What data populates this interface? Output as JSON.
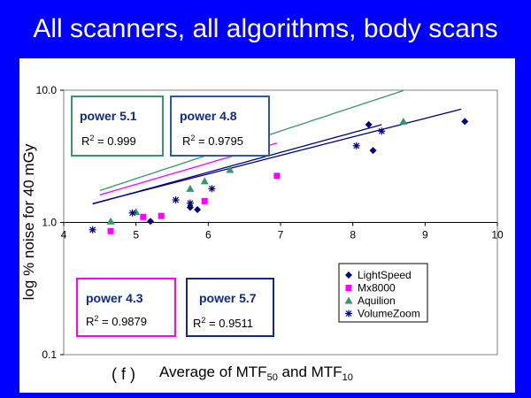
{
  "title": "All scanners, all algorithms, body scans",
  "chart_data": {
    "type": "scatter",
    "panel_tag": "( f )",
    "xlabel_main": "Average of MTF",
    "xlabel_sub1": "50",
    "xlabel_mid": " and MTF",
    "xlabel_sub2": "10",
    "ylabel": "log % noise for 40 mGy",
    "xlim": [
      4,
      10
    ],
    "ylim": [
      0.1,
      10
    ],
    "y_scale": "log",
    "x_ticks": [
      "4",
      "5",
      "6",
      "7",
      "8",
      "9",
      "10"
    ],
    "y_ticks": [
      "10.0",
      "1.0",
      "0.1"
    ],
    "legend_position": "bottom-right",
    "series": [
      {
        "name": "LightSpeed",
        "marker": "diamond",
        "color": "#000080",
        "points": [
          [
            5.2,
            1.02
          ],
          [
            5.75,
            1.3
          ],
          [
            5.85,
            1.25
          ],
          [
            8.22,
            5.5
          ],
          [
            8.28,
            3.5
          ],
          [
            9.55,
            5.8
          ]
        ],
        "fit": {
          "a": 3.38,
          "b": 0.14,
          "x0": 4.4,
          "x1": 9.5
        }
      },
      {
        "name": "Mx8000",
        "marker": "square",
        "color": "#ff00ff",
        "points": [
          [
            4.65,
            0.86
          ],
          [
            5.1,
            1.1
          ],
          [
            5.35,
            1.12
          ],
          [
            5.95,
            1.45
          ],
          [
            6.95,
            2.25
          ]
        ],
        "fit": {
          "a": 3.2,
          "b": 0.16,
          "x0": 4.5,
          "x1": 6.95
        }
      },
      {
        "name": "Aquilion",
        "marker": "triangle",
        "color": "#339966",
        "points": [
          [
            4.65,
            1.02
          ],
          [
            5.0,
            1.2
          ],
          [
            5.75,
            1.8
          ],
          [
            5.95,
            2.05
          ],
          [
            6.3,
            2.5
          ],
          [
            8.7,
            5.8
          ]
        ],
        "fit": {
          "a": 3.16,
          "b": 0.18,
          "x0": 4.5,
          "x1": 8.7
        }
      },
      {
        "name": "VolumeZoom",
        "marker": "asterisk",
        "color": "#000080",
        "points": [
          [
            4.4,
            0.88
          ],
          [
            4.95,
            1.18
          ],
          [
            5.55,
            1.48
          ],
          [
            5.75,
            1.4
          ],
          [
            6.05,
            1.8
          ],
          [
            8.05,
            3.8
          ],
          [
            8.4,
            4.9
          ]
        ],
        "fit": {
          "a": 3.47,
          "b": 0.15,
          "x0": 4.4,
          "x1": 8.4
        }
      }
    ],
    "annotations": [
      {
        "id": "green",
        "border": "#339966",
        "title": "power 5.1",
        "r2_prefix": "R",
        "r2_sup": "2",
        "r2_value": " = 0.999"
      },
      {
        "id": "blue-top",
        "border": "#2a5aa8",
        "title": "power 4.8",
        "r2_prefix": "R",
        "r2_sup": "2",
        "r2_value": " = 0.9795"
      },
      {
        "id": "magenta",
        "border": "#ff00ff",
        "title": "power 4.3",
        "r2_prefix": "R",
        "r2_sup": "2",
        "r2_value": " = 0.9879"
      },
      {
        "id": "navy",
        "border": "#10288c",
        "title": "power 5.7",
        "r2_prefix": "R",
        "r2_sup": "2",
        "r2_value": " = 0.9511"
      }
    ]
  }
}
